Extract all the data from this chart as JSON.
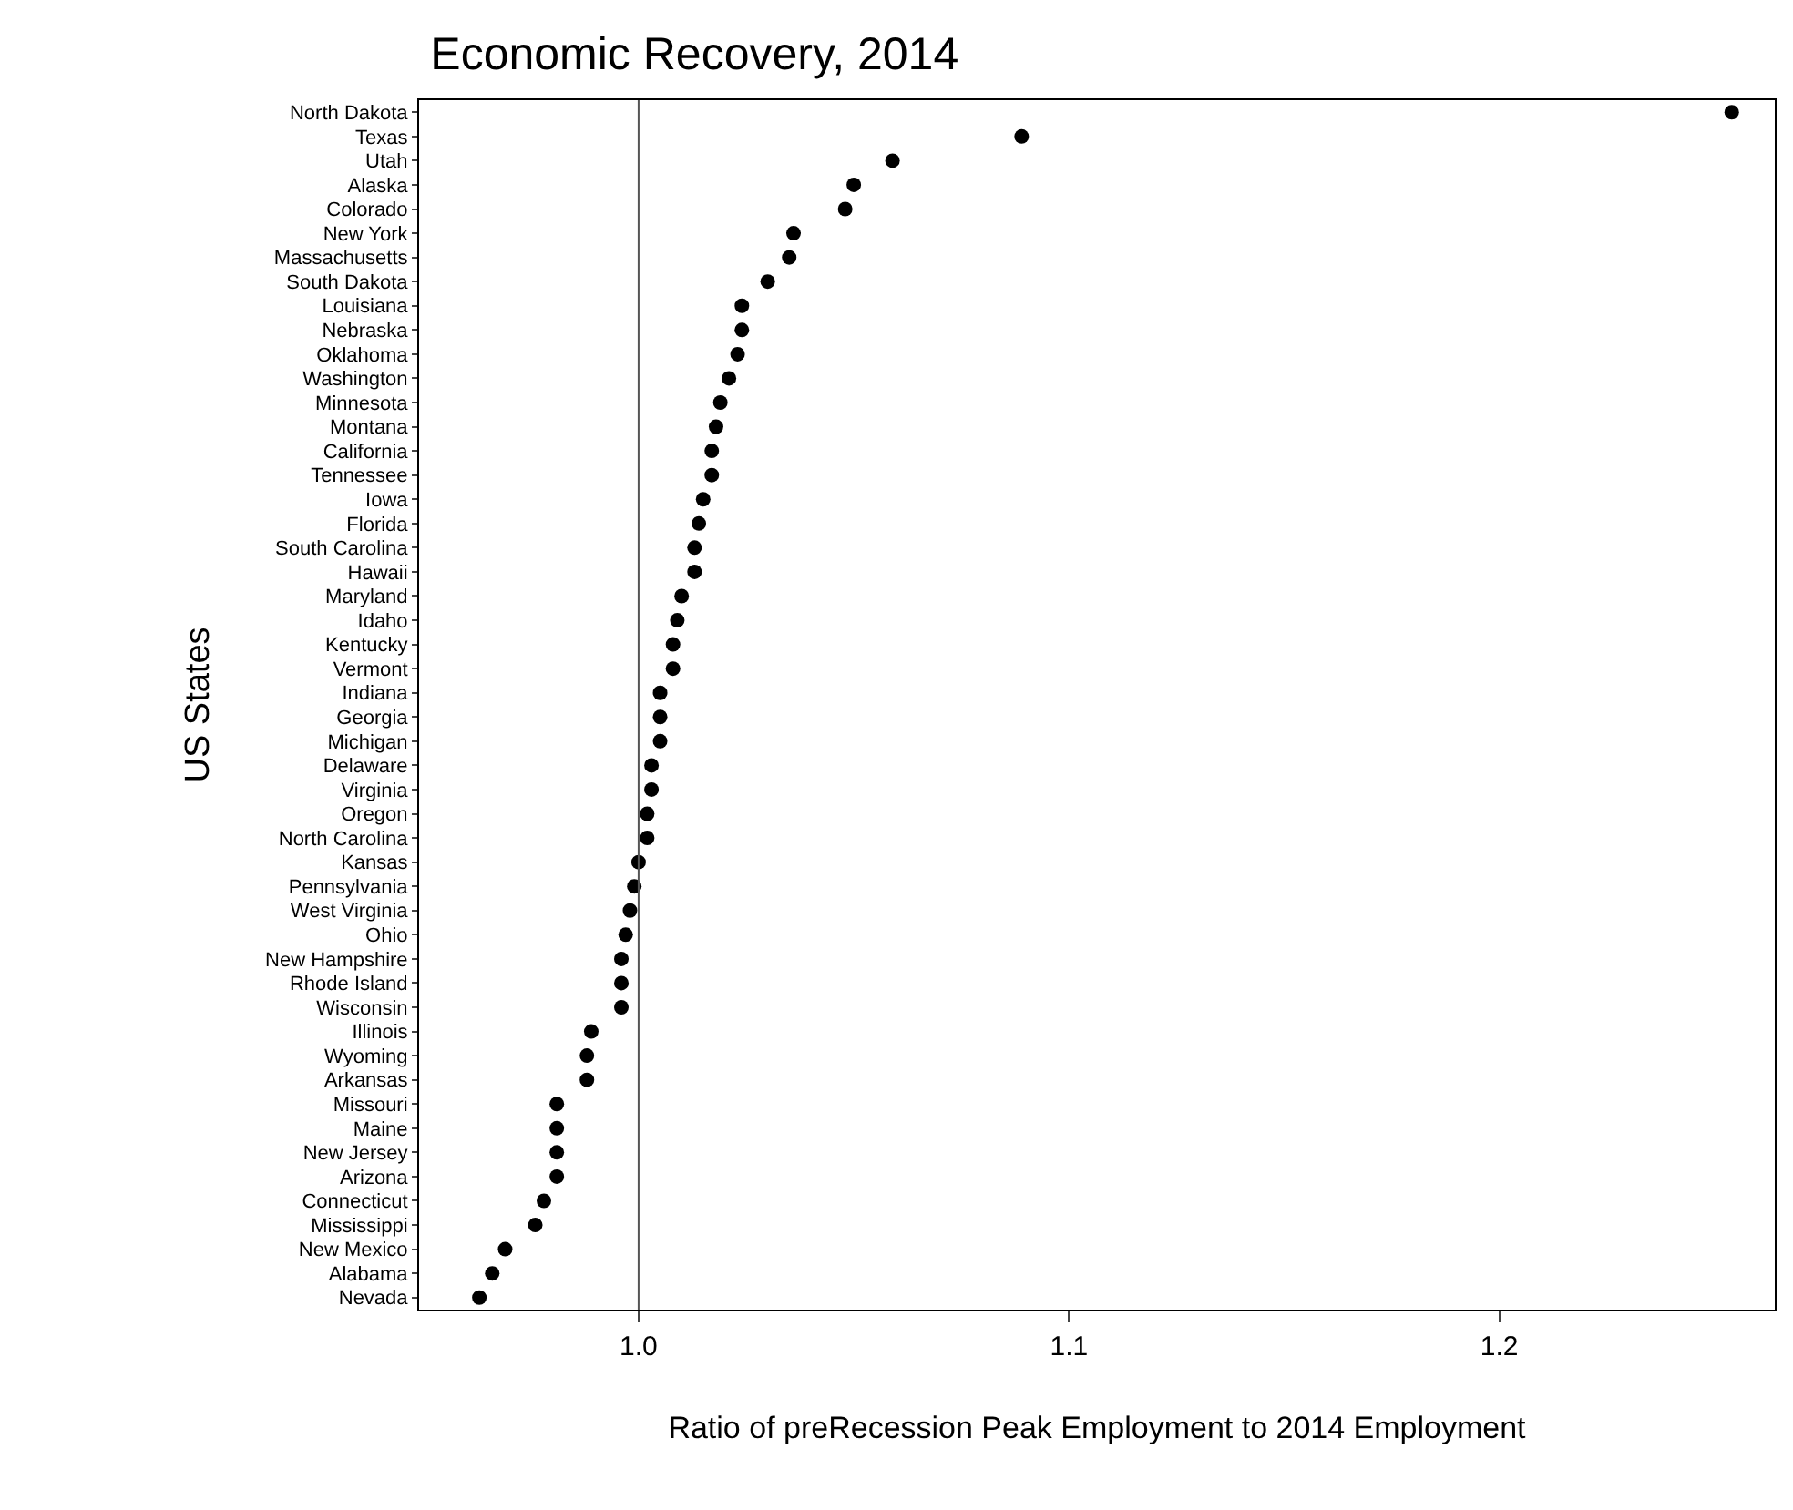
{
  "chart_data": {
    "type": "scatter",
    "title": "Economic Recovery, 2014",
    "xlabel": "Ratio of preRecession Peak Employment to 2014 Employment",
    "ylabel": "US States",
    "orientation": "horizontal",
    "categories": [
      "North Dakota",
      "Texas",
      "Utah",
      "Alaska",
      "Colorado",
      "New York",
      "Massachusetts",
      "South Dakota",
      "Louisiana",
      "Nebraska",
      "Oklahoma",
      "Washington",
      "Minnesota",
      "Montana",
      "California",
      "Tennessee",
      "Iowa",
      "Florida",
      "South Carolina",
      "Hawaii",
      "Maryland",
      "Idaho",
      "Kentucky",
      "Vermont",
      "Indiana",
      "Georgia",
      "Michigan",
      "Delaware",
      "Virginia",
      "Oregon",
      "North Carolina",
      "Kansas",
      "Pennsylvania",
      "West Virginia",
      "Ohio",
      "New Hampshire",
      "Rhode Island",
      "Wisconsin",
      "Illinois",
      "Wyoming",
      "Arkansas",
      "Missouri",
      "Maine",
      "New Jersey",
      "Arizona",
      "Connecticut",
      "Mississippi",
      "New Mexico",
      "Alabama",
      "Nevada"
    ],
    "values": [
      1.254,
      1.089,
      1.059,
      1.05,
      1.048,
      1.036,
      1.035,
      1.03,
      1.024,
      1.024,
      1.023,
      1.021,
      1.019,
      1.018,
      1.017,
      1.017,
      1.015,
      1.014,
      1.013,
      1.013,
      1.01,
      1.009,
      1.008,
      1.008,
      1.005,
      1.005,
      1.005,
      1.003,
      1.003,
      1.002,
      1.002,
      1.0,
      0.999,
      0.998,
      0.997,
      0.996,
      0.996,
      0.996,
      0.989,
      0.988,
      0.988,
      0.981,
      0.981,
      0.981,
      0.981,
      0.978,
      0.976,
      0.969,
      0.966,
      0.963
    ],
    "color": "#000000",
    "marker": "circle",
    "xlim": [
      0.949,
      1.264
    ],
    "xticks": [
      {
        "value": 1,
        "label": "1.0"
      },
      1.1,
      1.2
    ],
    "grid": false,
    "legend": false,
    "ref_lines": [
      {
        "axis": "x",
        "value": 1.0,
        "color": "#555555"
      }
    ]
  }
}
